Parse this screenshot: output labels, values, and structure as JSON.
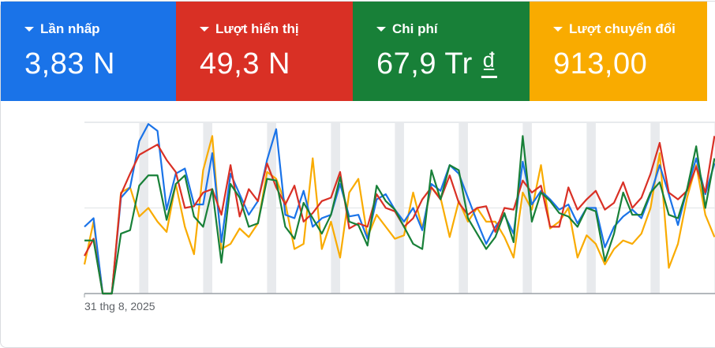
{
  "scorecards": [
    {
      "label": "Lần nhấp",
      "value": "3,83 N",
      "color": "#1a73e8"
    },
    {
      "label": "Lượt hiển thị",
      "value": "49,3 N",
      "color": "#d93025"
    },
    {
      "label": "Chi phí",
      "value": "67,9 Tr",
      "currency": "₫",
      "color": "#188038"
    },
    {
      "label": "Lượt chuyển đổi",
      "value": "913,00",
      "color": "#f9ab00"
    }
  ],
  "chart_data": {
    "type": "line",
    "x_start_label": "31 thg 8, 2025",
    "y_scale": "relative (no axis labels shown)",
    "grid": true,
    "weekend_bands": true,
    "series": [
      {
        "name": "Lần nhấp",
        "color": "#1a73e8",
        "values": [
          39,
          44,
          0,
          0,
          56,
          62,
          89,
          99,
          95,
          49,
          70,
          73,
          52,
          52,
          82,
          30,
          70,
          58,
          46,
          54,
          78,
          96,
          46,
          44,
          60,
          39,
          44,
          46,
          64,
          45,
          46,
          32,
          55,
          58,
          49,
          42,
          50,
          37,
          64,
          60,
          75,
          70,
          56,
          42,
          29,
          39,
          46,
          35,
          77,
          52,
          60,
          55,
          49,
          52,
          41,
          50,
          50,
          27,
          39,
          45,
          49,
          44,
          58,
          75,
          58,
          40,
          61,
          79,
          58,
          76
        ]
      },
      {
        "name": "Lượt hiển thị",
        "color": "#d93025",
        "values": [
          22,
          32,
          0,
          0,
          58,
          70,
          81,
          84,
          87,
          78,
          71,
          50,
          51,
          59,
          61,
          46,
          75,
          45,
          61,
          54,
          76,
          62,
          52,
          63,
          42,
          47,
          54,
          56,
          71,
          38,
          41,
          39,
          58,
          50,
          48,
          39,
          44,
          55,
          62,
          55,
          69,
          53,
          46,
          50,
          51,
          36,
          50,
          49,
          66,
          59,
          63,
          39,
          39,
          62,
          49,
          55,
          60,
          49,
          53,
          65,
          50,
          56,
          70,
          88,
          59,
          55,
          60,
          74,
          59,
          92
        ]
      },
      {
        "name": "Chi phí",
        "color": "#188038",
        "values": [
          31,
          31,
          0,
          0,
          35,
          37,
          63,
          69,
          69,
          43,
          64,
          69,
          45,
          39,
          61,
          18,
          64,
          56,
          39,
          41,
          67,
          66,
          39,
          32,
          53,
          44,
          35,
          46,
          68,
          42,
          40,
          28,
          63,
          54,
          49,
          39,
          29,
          26,
          72,
          55,
          75,
          72,
          44,
          35,
          26,
          33,
          47,
          30,
          92,
          42,
          59,
          54,
          47,
          45,
          39,
          50,
          48,
          19,
          35,
          59,
          46,
          46,
          59,
          65,
          46,
          44,
          61,
          86,
          50,
          79
        ]
      },
      {
        "name": "Lượt chuyển đổi",
        "color": "#f9ab00",
        "values": [
          17,
          42,
          0,
          0,
          59,
          62,
          45,
          50,
          42,
          36,
          64,
          39,
          23,
          72,
          92,
          26,
          29,
          38,
          33,
          41,
          71,
          67,
          53,
          26,
          29,
          79,
          26,
          42,
          21,
          59,
          67,
          33,
          46,
          39,
          32,
          34,
          59,
          38,
          62,
          56,
          33,
          54,
          42,
          50,
          42,
          42,
          33,
          21,
          59,
          49,
          75,
          38,
          42,
          50,
          21,
          34,
          29,
          17,
          26,
          31,
          29,
          35,
          50,
          82,
          15,
          29,
          56,
          75,
          46,
          33
        ]
      }
    ]
  }
}
